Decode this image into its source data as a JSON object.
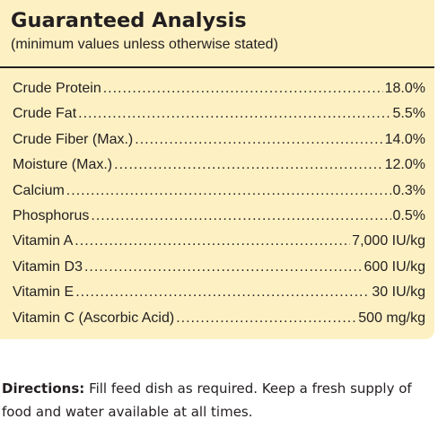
{
  "title": "Guaranteed Analysis",
  "subtitle": "(minimum values unless otherwise stated)",
  "rows": [
    {
      "label": "Crude Protein",
      "value": "18.0%"
    },
    {
      "label": "Crude Fat",
      "value": "5.5%"
    },
    {
      "label": "Crude Fiber (Max.)",
      "value": "14.0%"
    },
    {
      "label": "Moisture (Max.)",
      "value": "12.0%"
    },
    {
      "label": "Calcium",
      "value": "0.3%"
    },
    {
      "label": "Phosphorus",
      "value": "0.5%"
    },
    {
      "label": "Vitamin A",
      "value": "7,000 IU/kg"
    },
    {
      "label": "Vitamin D3",
      "value": "600 IU/kg"
    },
    {
      "label": "Vitamin E",
      "value": "30 IU/kg"
    },
    {
      "label": "Vitamin C (Ascorbic Acid)",
      "value": "500 mg/kg"
    }
  ],
  "directions": {
    "heading": "Directions:",
    "text": "Fill feed dish as required. Keep a fresh supply of food and water available at all times."
  },
  "colors": {
    "panel_background": "#fdf1c4",
    "text": "#231f20"
  }
}
